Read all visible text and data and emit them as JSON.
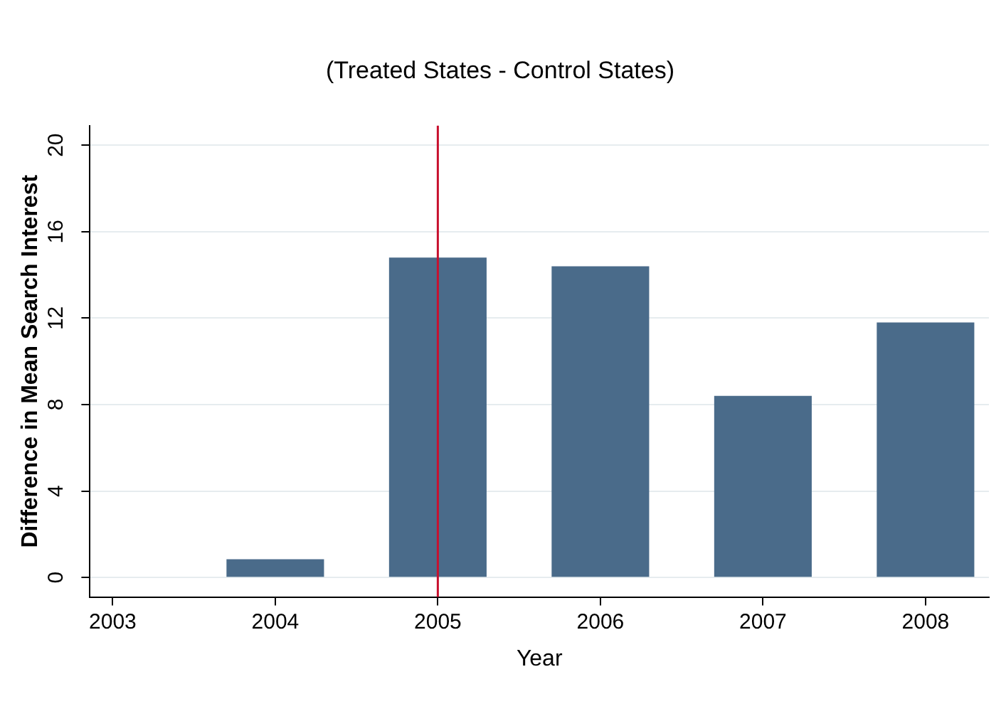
{
  "chart_data": {
    "type": "bar",
    "title": "(Treated States - Control States)",
    "xlabel": "Year",
    "ylabel": "Difference in Mean Search Interest",
    "x": [
      2004,
      2005,
      2006,
      2007,
      2008
    ],
    "values": [
      0.85,
      14.8,
      14.4,
      8.4,
      11.8
    ],
    "color": "#4a6b8a",
    "xlim": [
      2002.86,
      2008.39
    ],
    "xticks": [
      2003,
      2004,
      2005,
      2006,
      2007,
      2008
    ],
    "ylim": [
      -0.9,
      20.9
    ],
    "yticks": [
      0,
      4,
      8,
      12,
      16,
      20
    ],
    "grid": "y",
    "ref_lines": [
      {
        "axis": "x",
        "value": 2005,
        "color": "#c8102e"
      }
    ]
  }
}
